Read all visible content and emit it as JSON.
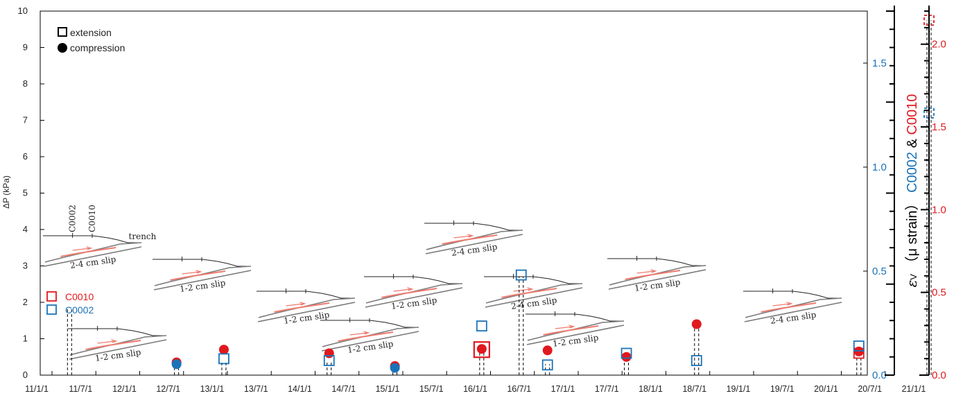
{
  "chart_data": {
    "type": "scatter",
    "title": "",
    "left_axis": {
      "label": "ΔP (kPa)",
      "ylim": [
        0,
        10
      ],
      "ticks": [
        0,
        1,
        2,
        3,
        4,
        5,
        6,
        7,
        8,
        9,
        10
      ]
    },
    "right_axis_c0002": {
      "color": "#1a73b8",
      "ylim": [
        0,
        1.75
      ],
      "ticks": [
        "0.0",
        "0.5",
        "1.0",
        "1.5"
      ]
    },
    "right_axis_c0010": {
      "color": "#e0191e",
      "ylim": [
        0,
        2.2
      ],
      "ticks": [
        "0.0",
        "0.5",
        "1.0",
        "1.5",
        "2.0"
      ]
    },
    "right_label": {
      "prefix": "ε",
      "sub": "V",
      "unit": "（μ strain）",
      "c0002": "C0002",
      "amp": "&",
      "c0010": "C0010"
    },
    "x_ticks": [
      "11/1/1",
      "11/7/1",
      "12/1/1",
      "12/7/1",
      "13/1/1",
      "13/7/1",
      "14/1/1",
      "14/7/1",
      "15/1/1",
      "15/7/1",
      "16/1/1",
      "16/7/1",
      "17/1/1",
      "17/7/1",
      "18/1/1",
      "18/7/1",
      "19/1/1",
      "19/7/1",
      "20/1/1",
      "20/7/1",
      "21/1/1"
    ],
    "legend": {
      "extension": "extension",
      "compression": "compression",
      "c0010": "C0010",
      "c0002": "C0002"
    },
    "colors": {
      "c0002": "#1a73b8",
      "c0010": "#e0191e",
      "slip": "#ee7a6e",
      "slab": "#7a7a7a"
    },
    "events": [
      {
        "t": 2011.2,
        "dP": 1.85,
        "strains": []
      },
      {
        "t": 2012.42,
        "dP": 0.3,
        "strains": [
          {
            "site": "C0010",
            "kind": "compression",
            "v": 0.35
          },
          {
            "site": "C0002",
            "kind": "compression",
            "v": 0.3
          }
        ]
      },
      {
        "t": 2012.96,
        "dP": 0.4,
        "strains": [
          {
            "site": "C0010",
            "kind": "compression",
            "v": 0.7
          },
          {
            "site": "C0002",
            "kind": "extension",
            "v": 0.45
          }
        ]
      },
      {
        "t": 2014.16,
        "dP": 0.35,
        "strains": [
          {
            "site": "C0010",
            "kind": "compression",
            "v": 0.6
          },
          {
            "site": "C0002",
            "kind": "extension",
            "v": 0.4
          }
        ]
      },
      {
        "t": 2014.91,
        "dP": 0.2,
        "strains": [
          {
            "site": "C0010",
            "kind": "compression",
            "v": 0.25
          },
          {
            "site": "C0002",
            "kind": "compression",
            "v": 0.2
          }
        ]
      },
      {
        "t": 2015.9,
        "dP": 0.7,
        "strains": [
          {
            "site": "C0010",
            "kind": "extension",
            "v": 0.7
          },
          {
            "site": "C0010",
            "kind": "compression",
            "v": 0.72
          },
          {
            "site": "C0002",
            "kind": "extension",
            "v": 1.35
          }
        ]
      },
      {
        "t": 2016.35,
        "dP": 2.7,
        "strains": [
          {
            "site": "C0002",
            "kind": "extension",
            "v": 2.75
          }
        ]
      },
      {
        "t": 2016.65,
        "dP": 0.3,
        "strains": [
          {
            "site": "C0010",
            "kind": "compression",
            "v": 0.68
          },
          {
            "site": "C0002",
            "kind": "extension",
            "v": 0.28
          }
        ]
      },
      {
        "t": 2017.55,
        "dP": 0.5,
        "strains": [
          {
            "site": "C0010",
            "kind": "compression",
            "v": 0.5
          },
          {
            "site": "C0002",
            "kind": "extension",
            "v": 0.6
          }
        ]
      },
      {
        "t": 2018.35,
        "dP": 1.4,
        "strains": [
          {
            "site": "C0010",
            "kind": "compression",
            "v": 1.4
          },
          {
            "site": "C0002",
            "kind": "extension",
            "v": 0.4
          }
        ]
      },
      {
        "t": 2020.2,
        "dP": 0.6,
        "strains": [
          {
            "site": "C0010",
            "kind": "extension",
            "v": 0.6
          },
          {
            "site": "C0010",
            "kind": "compression",
            "v": 0.65
          },
          {
            "site": "C0002",
            "kind": "extension",
            "v": 0.8
          }
        ]
      },
      {
        "t": 2021.0,
        "dP": 9.75,
        "strains": [
          {
            "site": "C0010",
            "kind": "extension",
            "v": 9.75
          },
          {
            "site": "C0002",
            "kind": "extension",
            "v": 7.2
          }
        ]
      }
    ],
    "slip_insets": [
      {
        "label": "2-4 cm slip",
        "station_labels": [
          "C0002",
          "C0010"
        ],
        "extra": "trench"
      },
      {
        "label": "1-2 cm slip"
      },
      {
        "label": "1-2 cm slip"
      },
      {
        "label": "1-2 cm slip"
      },
      {
        "label": "1-2 cm slip"
      },
      {
        "label": "1-2 cm slip"
      },
      {
        "label": "2-4 cm slip"
      },
      {
        "label": "2-4 cm slip"
      },
      {
        "label": "1-2 cm slip"
      },
      {
        "label": "1-2 cm slip"
      },
      {
        "label": "2-4 cm slip"
      },
      {
        "label": "1-2 cm slip"
      }
    ]
  }
}
